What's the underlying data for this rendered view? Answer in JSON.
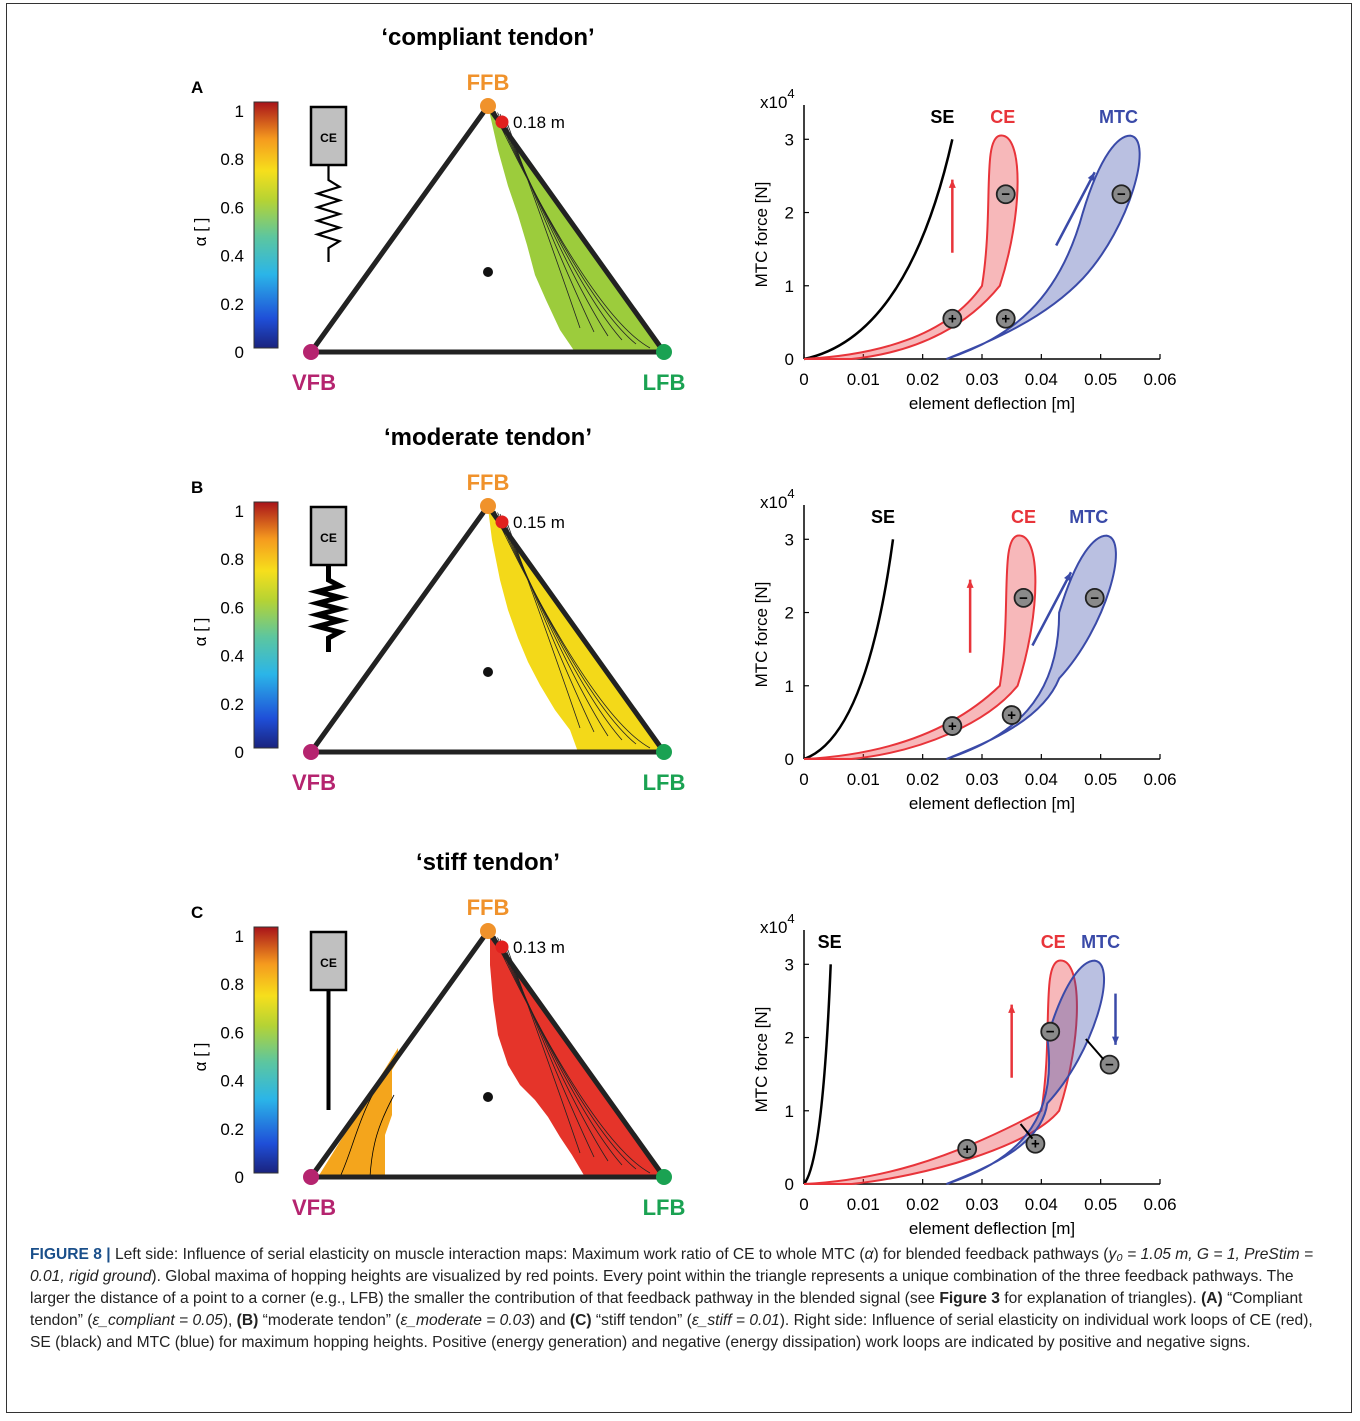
{
  "figure": {
    "panels": [
      {
        "letter": "A",
        "title": "‘compliant tendon’",
        "max_height": "0.18 m",
        "fill_color": "#9ccc3c",
        "ce_label": "CE",
        "spring_style": "compliant",
        "colorbar": {
          "label": "α [ ]",
          "ticks": [
            "0",
            "0.2",
            "0.4",
            "0.6",
            "0.8",
            "1"
          ]
        },
        "corners": {
          "top": "FFB",
          "left": "VFB",
          "right": "LFB"
        },
        "plot": {
          "exponent": "x10",
          "exponent_power": "4",
          "ylabel": "MTC force [N]",
          "xlabel": "element deflection [m]",
          "xticks": [
            "0",
            "0.01",
            "0.02",
            "0.03",
            "0.04",
            "0.05",
            "0.06"
          ],
          "yticks": [
            "0",
            "1",
            "2",
            "3"
          ],
          "labels": {
            "se": "SE",
            "ce": "CE",
            "mtc": "MTC"
          },
          "signs": {
            "pos": "+",
            "neg": "−"
          }
        }
      },
      {
        "letter": "B",
        "title": "‘moderate tendon’",
        "max_height": "0.15 m",
        "fill_color": "#f3d919",
        "ce_label": "CE",
        "spring_style": "moderate",
        "colorbar": {
          "label": "α [ ]",
          "ticks": [
            "0",
            "0.2",
            "0.4",
            "0.6",
            "0.8",
            "1"
          ]
        },
        "corners": {
          "top": "FFB",
          "left": "VFB",
          "right": "LFB"
        },
        "plot": {
          "exponent": "x10",
          "exponent_power": "4",
          "ylabel": "MTC force [N]",
          "xlabel": "element deflection [m]",
          "xticks": [
            "0",
            "0.01",
            "0.02",
            "0.03",
            "0.04",
            "0.05",
            "0.06"
          ],
          "yticks": [
            "0",
            "1",
            "2",
            "3"
          ],
          "labels": {
            "se": "SE",
            "ce": "CE",
            "mtc": "MTC"
          },
          "signs": {
            "pos": "+",
            "neg": "−"
          }
        }
      },
      {
        "letter": "C",
        "title": "‘stiff tendon’",
        "max_height": "0.13 m",
        "fill_color": "#e5342a",
        "ce_label": "CE",
        "spring_style": "stiff",
        "colorbar": {
          "label": "α [ ]",
          "ticks": [
            "0",
            "0.2",
            "0.4",
            "0.6",
            "0.8",
            "1"
          ]
        },
        "corners": {
          "top": "FFB",
          "left": "VFB",
          "right": "LFB"
        },
        "plot": {
          "exponent": "x10",
          "exponent_power": "4",
          "ylabel": "MTC force [N]",
          "xlabel": "element deflection [m]",
          "xticks": [
            "0",
            "0.01",
            "0.02",
            "0.03",
            "0.04",
            "0.05",
            "0.06"
          ],
          "yticks": [
            "0",
            "1",
            "2",
            "3"
          ],
          "labels": {
            "se": "SE",
            "ce": "CE",
            "mtc": "MTC"
          },
          "signs": {
            "pos": "+",
            "neg": "−"
          }
        }
      }
    ],
    "colors": {
      "ffb": "#f0922b",
      "vfb": "#b5246f",
      "lfb": "#1aa252",
      "ce": "#e8343a",
      "mtc": "#3a4aa8",
      "se": "#000000"
    }
  },
  "caption": {
    "lead": "FIGURE 8 |",
    "text1": " Left side: Influence of serial elasticity on muscle interaction maps: Maximum work ratio of CE to whole MTC (",
    "alpha": "α",
    "text2": ") for blended feedback pathways (",
    "params": "y₀ = 1.05 m, G = 1, PreStim = 0.01, rigid ground",
    "text3": "). Global maxima of hopping heights are visualized by red points. Every point within the triangle represents a unique combination of the three feedback pathways. The larger the distance of a point to a corner (e.g., LFB) the smaller the contribution of that feedback pathway in the blended signal (see ",
    "ref": "Figure 3",
    "text4": " for explanation of triangles). ",
    "a": "(A)",
    "a_text": " “Compliant tendon” (",
    "a_eps": "ε_compliant = 0.05",
    "sep1": "), ",
    "b": "(B)",
    "b_text": " “moderate tendon” (",
    "b_eps": "ε_moderate = 0.03",
    "sep2": ") and ",
    "c": "(C)",
    "c_text": " “stiff tendon” (",
    "c_eps": "ε_stiff = 0.01",
    "text5": "). Right side: Influence of serial elasticity on individual work loops of CE (red), SE (black) and MTC (blue) for maximum hopping heights. Positive (energy generation) and negative (energy dissipation) work loops are indicated by positive and negative signs."
  }
}
